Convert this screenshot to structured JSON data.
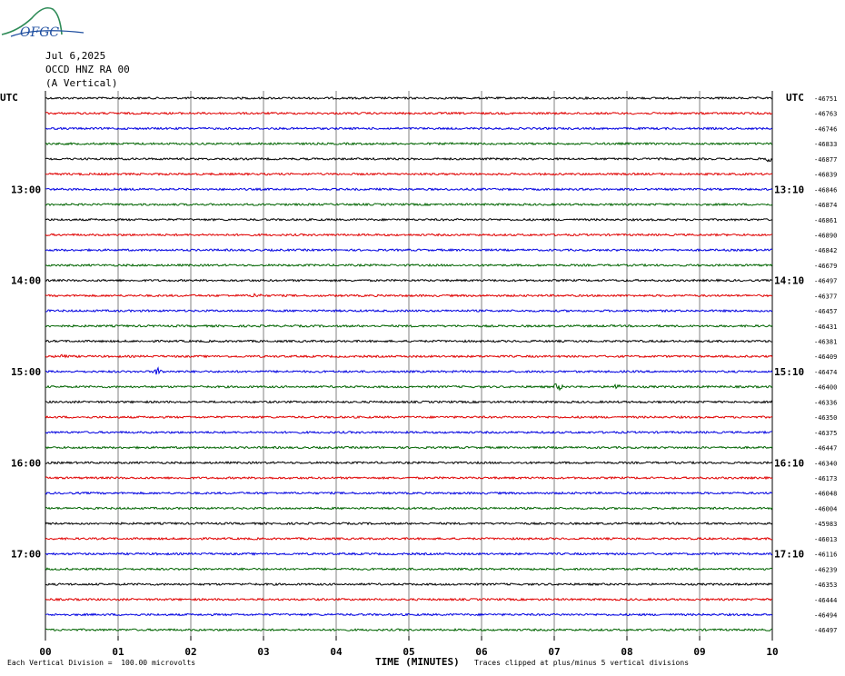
{
  "header": {
    "logo_text": "OFGC",
    "date": "Jul 6,2025",
    "station": "OCCD HNZ RA 00",
    "component": "(A Vertical)"
  },
  "chart_data": {
    "type": "line",
    "title": "OCCD HNZ RA 00",
    "xlabel": "TIME (MINUTES)",
    "ylabel": "",
    "xlim": [
      0,
      10
    ],
    "x_ticks": [
      "00",
      "01",
      "02",
      "03",
      "04",
      "05",
      "06",
      "07",
      "08",
      "09",
      "10"
    ],
    "grid": true,
    "left_timezone_label": "UTC",
    "right_timezone_label": "UTC",
    "left_time_labels": [
      {
        "row": 6,
        "label": "13:00"
      },
      {
        "row": 12,
        "label": "14:00"
      },
      {
        "row": 18,
        "label": "15:00"
      },
      {
        "row": 24,
        "label": "16:00"
      },
      {
        "row": 30,
        "label": "17:00"
      }
    ],
    "right_time_labels": [
      {
        "row": 6,
        "label": "13:10"
      },
      {
        "row": 12,
        "label": "14:10"
      },
      {
        "row": 18,
        "label": "15:10"
      },
      {
        "row": 24,
        "label": "16:10"
      },
      {
        "row": 30,
        "label": "17:10"
      }
    ],
    "trace_colors": [
      "#000000",
      "#e00000",
      "#0000e0",
      "#006400"
    ],
    "trace_offsets": [
      -46751,
      -46763,
      -46746,
      -46833,
      -46877,
      -46839,
      -46846,
      -46874,
      -46861,
      -46890,
      -46842,
      -46679,
      -46497,
      -46377,
      -46457,
      -46431,
      -46381,
      -46409,
      -46474,
      -46400,
      -46336,
      -46350,
      -46375,
      -46447,
      -46340,
      -46173,
      -46048,
      -46004,
      -45983,
      -46013,
      -46116,
      -46239,
      -46353,
      -46444,
      -46494,
      -46497
    ],
    "bursts": [
      {
        "row": 18,
        "x": 1.55,
        "amplitude": 3.5
      },
      {
        "row": 19,
        "x": 7.05,
        "amplitude": 4
      },
      {
        "row": 19,
        "x": 7.85,
        "amplitude": 2.5
      },
      {
        "row": 13,
        "x": 2.9,
        "amplitude": 2.5
      },
      {
        "row": 4,
        "x": 9.95,
        "amplitude": 2.5
      },
      {
        "row": 17,
        "x": 0.25,
        "amplitude": 2.5
      }
    ],
    "scale_note": "Each Vertical Division =  100.00 microvolts",
    "clip_note": "Traces clipped at plus/minus 5 vertical divisions"
  }
}
